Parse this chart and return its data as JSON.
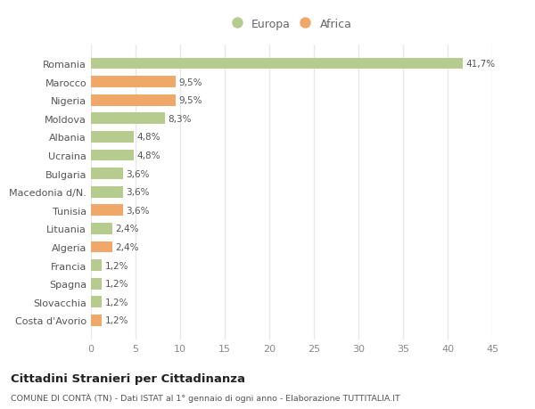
{
  "categories": [
    "Romania",
    "Marocco",
    "Nigeria",
    "Moldova",
    "Albania",
    "Ucraina",
    "Bulgaria",
    "Macedonia d/N.",
    "Tunisia",
    "Lituania",
    "Algeria",
    "Francia",
    "Spagna",
    "Slovacchia",
    "Costa d'Avorio"
  ],
  "values": [
    41.7,
    9.5,
    9.5,
    8.3,
    4.8,
    4.8,
    3.6,
    3.6,
    3.6,
    2.4,
    2.4,
    1.2,
    1.2,
    1.2,
    1.2
  ],
  "labels": [
    "41,7%",
    "9,5%",
    "9,5%",
    "8,3%",
    "4,8%",
    "4,8%",
    "3,6%",
    "3,6%",
    "3,6%",
    "2,4%",
    "2,4%",
    "1,2%",
    "1,2%",
    "1,2%",
    "1,2%"
  ],
  "continent": [
    "Europa",
    "Africa",
    "Africa",
    "Europa",
    "Europa",
    "Europa",
    "Europa",
    "Europa",
    "Africa",
    "Europa",
    "Africa",
    "Europa",
    "Europa",
    "Europa",
    "Africa"
  ],
  "color_europa": "#b5cc8e",
  "color_africa": "#f0a868",
  "bg_color": "#ffffff",
  "grid_color": "#e8e8e8",
  "title_main": "Cittadini Stranieri per Cittadinanza",
  "title_sub": "COMUNE DI CONTÀ (TN) - Dati ISTAT al 1° gennaio di ogni anno - Elaborazione TUTTITALIA.IT",
  "xlim": [
    0,
    45
  ],
  "xticks": [
    0,
    5,
    10,
    15,
    20,
    25,
    30,
    35,
    40,
    45
  ],
  "legend_europa": "Europa",
  "legend_africa": "Africa"
}
